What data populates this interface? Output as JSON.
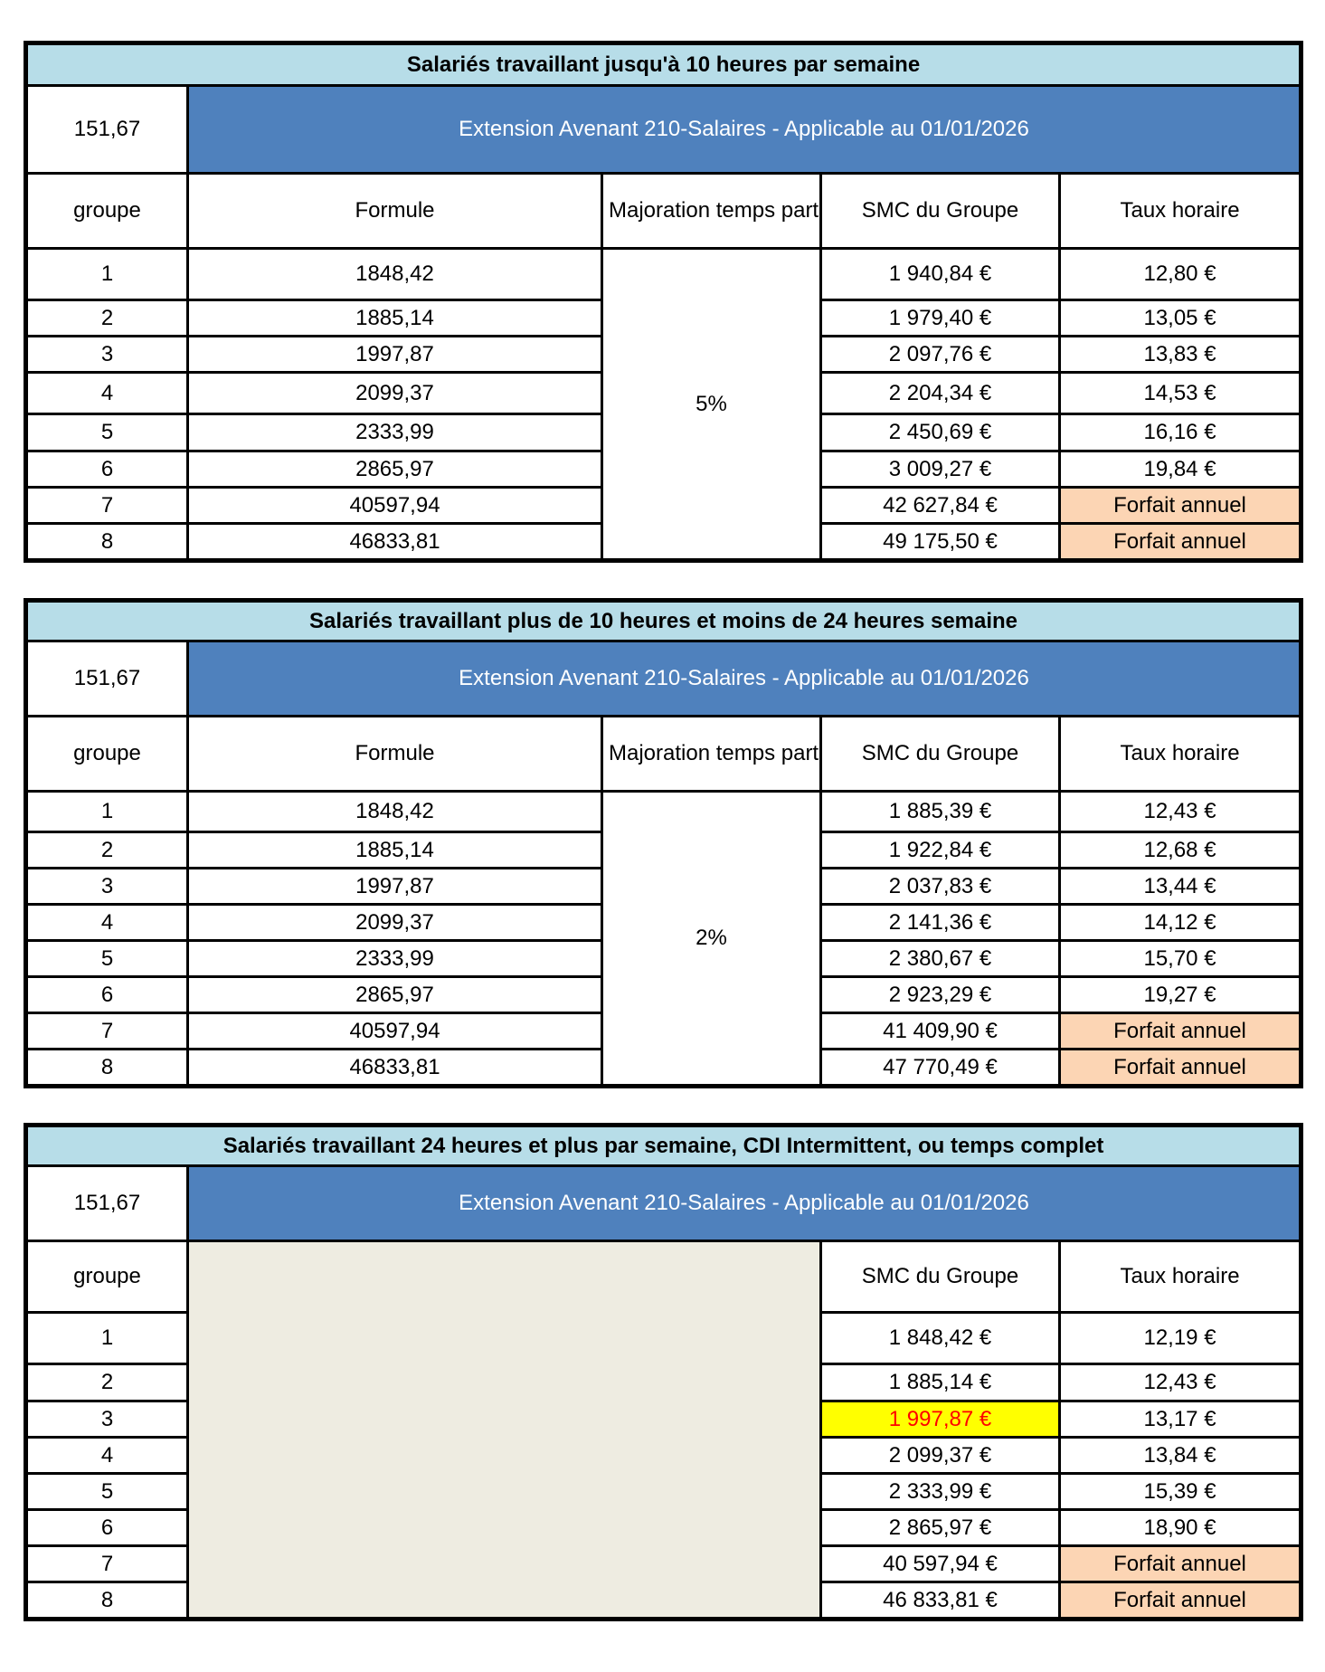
{
  "tables": [
    {
      "title": "Salariés travaillant jusqu'à 10 heures par semaine",
      "base": "151,67",
      "extension": "Extension Avenant 210-Salaires - Applicable au 01/01/2026",
      "headers": {
        "groupe": "groupe",
        "formule": "Formule",
        "majoration": "Majoration temps partiel",
        "smc": "SMC du Groupe",
        "taux": "Taux horaire"
      },
      "majoration": "5%",
      "rows": [
        {
          "groupe": "1",
          "formule": "1848,42",
          "smc": "1 940,84 €",
          "taux": "12,80 €"
        },
        {
          "groupe": "2",
          "formule": "1885,14",
          "smc": "1 979,40 €",
          "taux": "13,05 €"
        },
        {
          "groupe": "3",
          "formule": "1997,87",
          "smc": "2 097,76 €",
          "taux": "13,83 €"
        },
        {
          "groupe": "4",
          "formule": "2099,37",
          "smc": "2 204,34 €",
          "taux": "14,53 €"
        },
        {
          "groupe": "5",
          "formule": "2333,99",
          "smc": "2 450,69 €",
          "taux": "16,16 €"
        },
        {
          "groupe": "6",
          "formule": "2865,97",
          "smc": "3 009,27 €",
          "taux": "19,84 €"
        },
        {
          "groupe": "7",
          "formule": "40597,94",
          "smc": "42 627,84 €",
          "taux": "Forfait annuel"
        },
        {
          "groupe": "8",
          "formule": "46833,81",
          "smc": "49 175,50 €",
          "taux": "Forfait annuel"
        }
      ]
    },
    {
      "title": "Salariés travaillant plus de 10 heures et moins de 24 heures semaine",
      "base": "151,67",
      "extension": "Extension Avenant 210-Salaires - Applicable au 01/01/2026",
      "headers": {
        "groupe": "groupe",
        "formule": "Formule",
        "majoration": "Majoration temps partiel",
        "smc": "SMC du Groupe",
        "taux": "Taux horaire"
      },
      "majoration": "2%",
      "rows": [
        {
          "groupe": "1",
          "formule": "1848,42",
          "smc": "1 885,39 €",
          "taux": "12,43 €"
        },
        {
          "groupe": "2",
          "formule": "1885,14",
          "smc": "1 922,84 €",
          "taux": "12,68 €"
        },
        {
          "groupe": "3",
          "formule": "1997,87",
          "smc": "2 037,83 €",
          "taux": "13,44 €"
        },
        {
          "groupe": "4",
          "formule": "2099,37",
          "smc": "2 141,36 €",
          "taux": "14,12 €"
        },
        {
          "groupe": "5",
          "formule": "2333,99",
          "smc": "2 380,67 €",
          "taux": "15,70 €"
        },
        {
          "groupe": "6",
          "formule": "2865,97",
          "smc": "2 923,29 €",
          "taux": "19,27 €"
        },
        {
          "groupe": "7",
          "formule": "40597,94",
          "smc": "41 409,90 €",
          "taux": "Forfait annuel"
        },
        {
          "groupe": "8",
          "formule": "46833,81",
          "smc": "47 770,49 €",
          "taux": "Forfait annuel"
        }
      ]
    },
    {
      "title": "Salariés travaillant 24 heures et plus par semaine, CDI Intermittent, ou temps complet",
      "base": "151,67",
      "extension": "Extension Avenant 210-Salaires - Applicable au 01/01/2026",
      "headers": {
        "groupe": "groupe",
        "smc": "SMC du Groupe",
        "taux": "Taux horaire"
      },
      "rows": [
        {
          "groupe": "1",
          "smc": "1 848,42 €",
          "taux": "12,19 €"
        },
        {
          "groupe": "2",
          "smc": "1 885,14 €",
          "taux": "12,43 €"
        },
        {
          "groupe": "3",
          "smc": "1 997,87 €",
          "taux": "13,17 €",
          "highlight": true
        },
        {
          "groupe": "4",
          "smc": "2 099,37 €",
          "taux": "13,84 €"
        },
        {
          "groupe": "5",
          "smc": "2 333,99 €",
          "taux": "15,39 €"
        },
        {
          "groupe": "6",
          "smc": "2 865,97 €",
          "taux": "18,90 €"
        },
        {
          "groupe": "7",
          "smc": "40 597,94 €",
          "taux": "Forfait annuel"
        },
        {
          "groupe": "8",
          "smc": "46 833,81 €",
          "taux": "Forfait annuel"
        }
      ]
    }
  ],
  "colors": {
    "title_bg": "#b7dde8",
    "extension_bg": "#4f81bd",
    "forfait_bg": "#fcd5b4",
    "highlight_bg": "#ffff00",
    "highlight_text": "#ff0000",
    "blank_bg": "#eeece1"
  }
}
